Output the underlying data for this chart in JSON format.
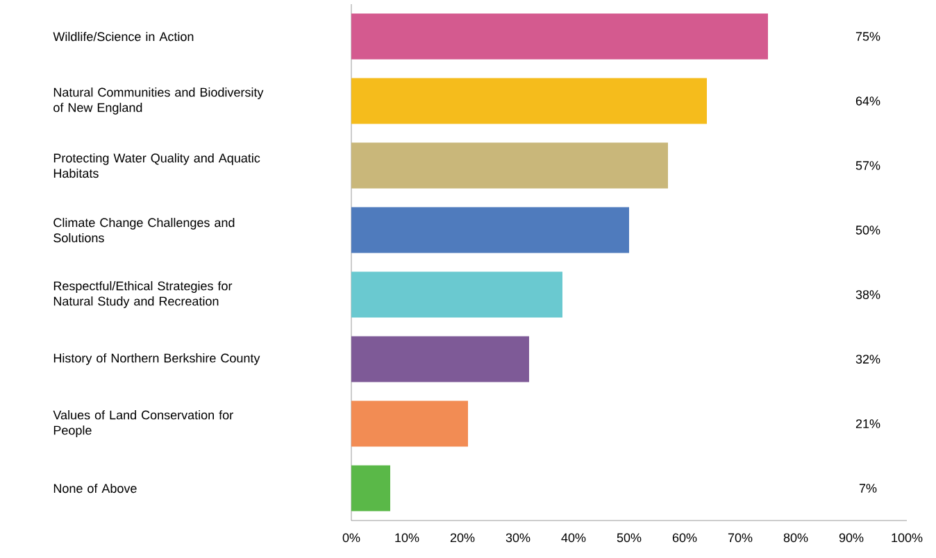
{
  "chart_data": {
    "type": "bar",
    "orientation": "horizontal",
    "categories": [
      "Wildlife/Science in Action",
      "Natural Communities and Biodiversity of New England",
      "Protecting Water Quality and Aquatic Habitats",
      "Climate Change Challenges and Solutions",
      "Respectful/Ethical Strategies for Natural Study and Recreation",
      "History of Northern Berkshire County",
      "Values of Land Conservation for People",
      "None of Above"
    ],
    "values": [
      75,
      64,
      57,
      50,
      38,
      32,
      21,
      7
    ],
    "value_labels": [
      "75%",
      "64%",
      "57%",
      "50%",
      "38%",
      "32%",
      "21%",
      "7%"
    ],
    "colors": [
      "#d45a8f",
      "#f5bc1c",
      "#c9b77a",
      "#4f7bbd",
      "#6ac9d0",
      "#7e5a97",
      "#f28c54",
      "#5ab848"
    ],
    "xlim": [
      0,
      100
    ],
    "xticks": [
      {
        "value": 0,
        "label": "0%"
      },
      {
        "value": 10,
        "label": "10%"
      },
      {
        "value": 20,
        "label": "20%"
      },
      {
        "value": 30,
        "label": "30%"
      },
      {
        "value": 40,
        "label": "40%"
      },
      {
        "value": 50,
        "label": "50%"
      },
      {
        "value": 60,
        "label": "60%"
      },
      {
        "value": 70,
        "label": "70%"
      },
      {
        "value": 80,
        "label": "80%"
      },
      {
        "value": 90,
        "label": "90%"
      },
      {
        "value": 100,
        "label": "100%"
      }
    ],
    "grid": false
  }
}
